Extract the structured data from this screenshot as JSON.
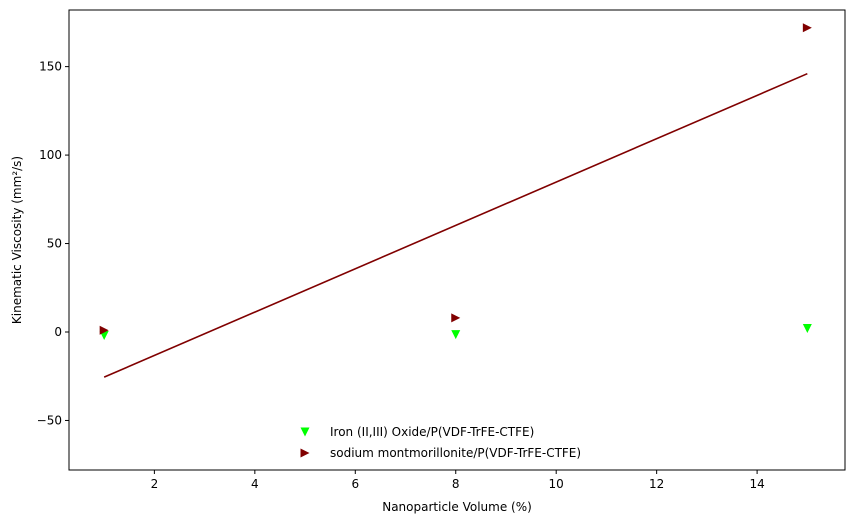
{
  "chart_data": {
    "type": "scatter",
    "title": "",
    "xlabel": "Nanoparticle Volume (%)",
    "ylabel": "Kinematic Viscosity (mm²/s)",
    "xlim": [
      0.3,
      15.75
    ],
    "ylim": [
      -78,
      182
    ],
    "xticks": [
      2,
      4,
      6,
      8,
      10,
      12,
      14
    ],
    "yticks": [
      -50,
      0,
      50,
      100,
      150
    ],
    "grid": false,
    "legend": "bottom-center",
    "series": [
      {
        "name": "Iron (II,III) Oxide/P(VDF-TrFE-CTFE)",
        "marker": "triangle-down",
        "color": "#00ff00",
        "x": [
          1,
          8,
          15
        ],
        "y": [
          -2,
          -1.5,
          2
        ]
      },
      {
        "name": "sodium montmorillonite/P(VDF-TrFE-CTFE)",
        "marker": "triangle-right",
        "color": "#800000",
        "x": [
          1,
          8,
          15
        ],
        "y": [
          1,
          8,
          172
        ]
      }
    ],
    "trendline": {
      "color": "#800000",
      "x": [
        1,
        15
      ],
      "y": [
        -25.5,
        146
      ]
    }
  }
}
